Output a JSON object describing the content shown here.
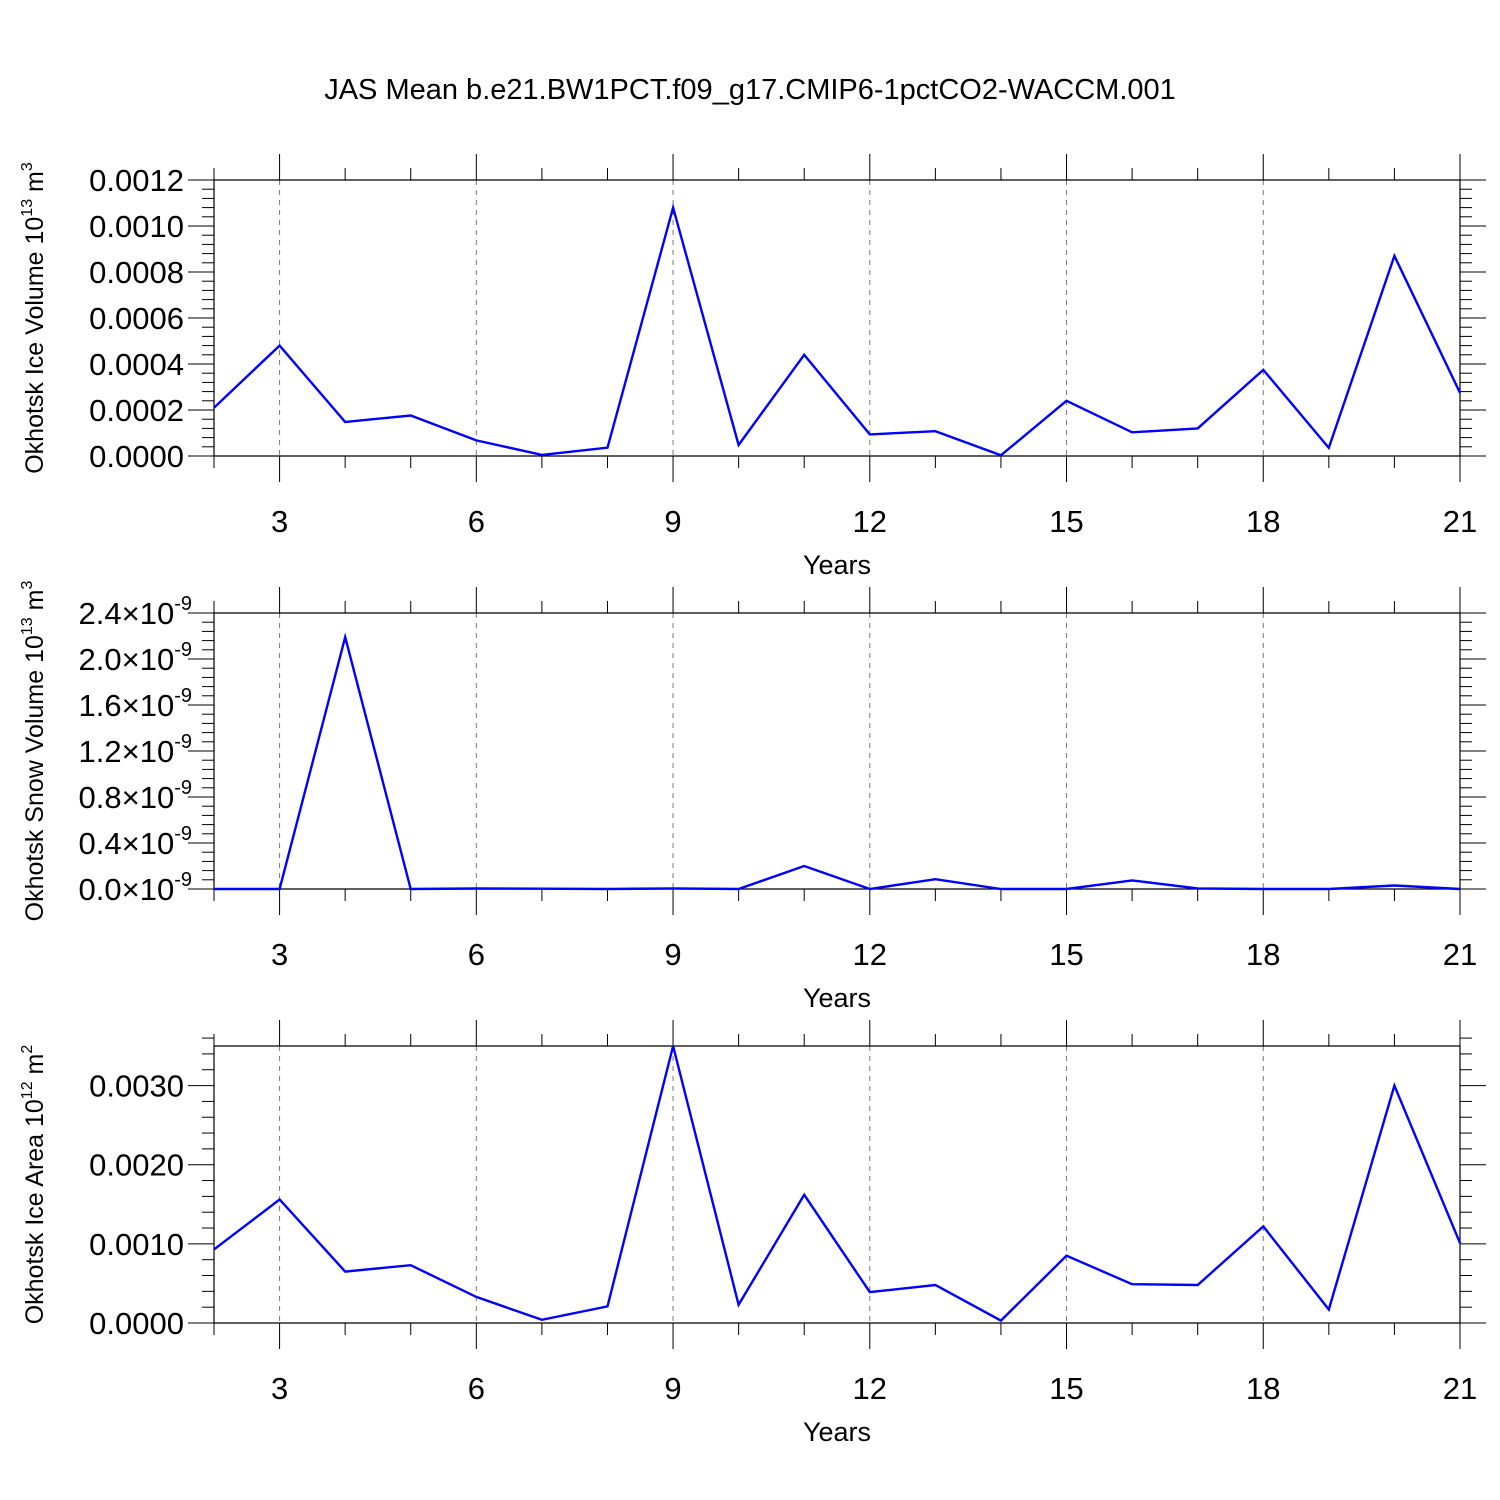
{
  "title": "JAS Mean b.e21.BW1PCT.f09_g17.CMIP6-1pctCO2-WACCM.001",
  "colors": {
    "line": "#0000ff",
    "axis": "#000000",
    "grid": "#777777"
  },
  "chart_data": [
    {
      "type": "line",
      "ylabel": "Okhotsk Ice Volume 10",
      "ylabel_sup": "13",
      "ylabel_unit": " m",
      "ylabel_unit_sup": "3",
      "xlabel": "Years",
      "xlim": [
        2,
        21
      ],
      "ylim": [
        0,
        0.0012
      ],
      "yticks": [
        0,
        0.0002,
        0.0004,
        0.0006,
        0.0008,
        0.001,
        0.0012
      ],
      "ytick_labels": [
        "0.0000",
        "0.0002",
        "0.0004",
        "0.0006",
        "0.0008",
        "0.0010",
        "0.0012"
      ],
      "xticks": [
        3,
        6,
        9,
        12,
        15,
        18,
        21
      ],
      "grid": "dashed at major x ticks",
      "x": [
        2,
        3,
        4,
        5,
        6,
        7,
        8,
        9,
        10,
        11,
        12,
        13,
        14,
        15,
        16,
        17,
        18,
        19,
        20,
        21
      ],
      "y": [
        0.00021,
        0.00048,
        0.000148,
        0.000176,
        6.8e-05,
        5e-06,
        3.6e-05,
        0.00108,
        4.8e-05,
        0.00044,
        9.4e-05,
        0.000108,
        3e-06,
        0.00024,
        0.000103,
        0.00012,
        0.000375,
        3.5e-05,
        0.00087,
        0.000275
      ]
    },
    {
      "type": "line",
      "ylabel": "Okhotsk Snow Volume 10",
      "ylabel_sup": "13",
      "ylabel_unit": " m",
      "ylabel_unit_sup": "3",
      "xlabel": "Years",
      "xlim": [
        2,
        21
      ],
      "ylim": [
        0,
        2.4e-09
      ],
      "yticks": [
        0,
        4e-10,
        8e-10,
        1.2e-09,
        1.6e-09,
        2e-09,
        2.4e-09
      ],
      "ytick_labels": [
        "0.0",
        "0.4",
        "0.8",
        "1.2",
        "1.6",
        "2.0",
        "2.4"
      ],
      "ytick_suffix": "×10",
      "ytick_exp": "-9",
      "xticks": [
        3,
        6,
        9,
        12,
        15,
        18,
        21
      ],
      "grid": "dashed at major x ticks",
      "x": [
        2,
        3,
        4,
        5,
        6,
        7,
        8,
        9,
        10,
        11,
        12,
        13,
        14,
        15,
        16,
        17,
        18,
        19,
        20,
        21
      ],
      "y": [
        0,
        0,
        2.19e-09,
        0,
        4e-12,
        3e-12,
        0,
        5e-12,
        0,
        2e-10,
        0,
        8.5e-11,
        0,
        0,
        7.5e-11,
        5e-12,
        0,
        0,
        3e-11,
        0
      ]
    },
    {
      "type": "line",
      "ylabel": "Okhotsk Ice Area 10",
      "ylabel_sup": "12",
      "ylabel_unit": " m",
      "ylabel_unit_sup": "2",
      "xlabel": "Years",
      "xlim": [
        2,
        21
      ],
      "ylim": [
        0,
        0.0035
      ],
      "yticks": [
        0,
        0.001,
        0.002,
        0.003
      ],
      "ytick_labels": [
        "0.0000",
        "0.0010",
        "0.0020",
        "0.0030"
      ],
      "xticks": [
        3,
        6,
        9,
        12,
        15,
        18,
        21
      ],
      "grid": "dashed at major x ticks",
      "x": [
        2,
        3,
        4,
        5,
        6,
        7,
        8,
        9,
        10,
        11,
        12,
        13,
        14,
        15,
        16,
        17,
        18,
        19,
        20,
        21
      ],
      "y": [
        0.00093,
        0.00156,
        0.00065,
        0.00073,
        0.00033,
        4e-05,
        0.00021,
        0.0035,
        0.00023,
        0.00162,
        0.00039,
        0.00048,
        3e-05,
        0.00085,
        0.00049,
        0.00048,
        0.00122,
        0.00017,
        0.003,
        0.00101
      ]
    }
  ]
}
